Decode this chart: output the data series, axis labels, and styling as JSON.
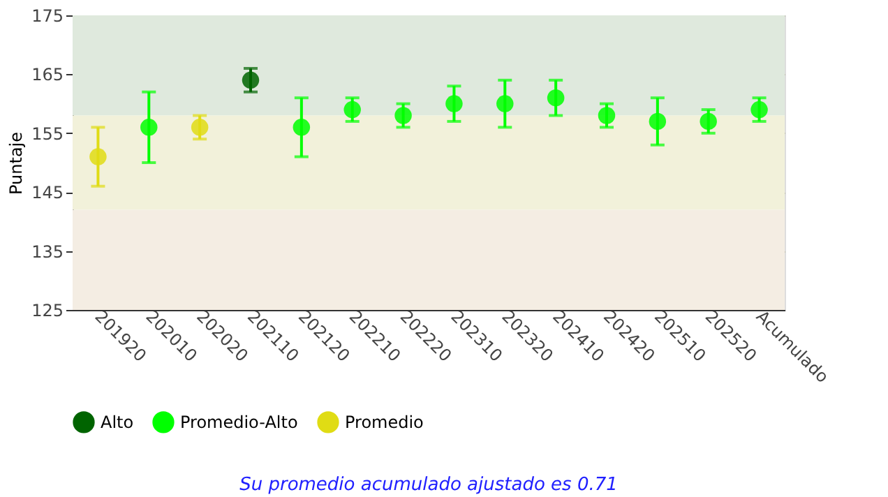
{
  "chart_data": {
    "type": "scatter",
    "ylabel": "Puntaje",
    "categories": [
      "201920",
      "202010",
      "202020",
      "202110",
      "202120",
      "202210",
      "202220",
      "202310",
      "202320",
      "202410",
      "202420",
      "202510",
      "202520",
      "Acumulado"
    ],
    "series": [
      {
        "name": "Alto",
        "color": "#006400",
        "values": [
          null,
          null,
          null,
          164,
          null,
          null,
          null,
          null,
          null,
          null,
          null,
          null,
          null,
          null
        ],
        "errors": [
          null,
          null,
          null,
          [
            162,
            166
          ],
          null,
          null,
          null,
          null,
          null,
          null,
          null,
          null,
          null,
          null
        ]
      },
      {
        "name": "Promedio-Alto",
        "color": "#00ff00",
        "values": [
          null,
          156,
          null,
          null,
          156,
          159,
          158,
          160,
          160,
          161,
          158,
          157,
          157,
          159
        ],
        "errors": [
          null,
          [
            150,
            162
          ],
          null,
          null,
          [
            151,
            161
          ],
          [
            157,
            161
          ],
          [
            156,
            160
          ],
          [
            157,
            163
          ],
          [
            156,
            164
          ],
          [
            158,
            164
          ],
          [
            156,
            160
          ],
          [
            153,
            161
          ],
          [
            155,
            159
          ],
          [
            157,
            161
          ]
        ]
      },
      {
        "name": "Promedio",
        "color": "#e0dc14",
        "values": [
          151,
          null,
          156,
          null,
          null,
          null,
          null,
          null,
          null,
          null,
          null,
          null,
          null,
          null
        ],
        "errors": [
          [
            146,
            156
          ],
          null,
          [
            154,
            158
          ],
          null,
          null,
          null,
          null,
          null,
          null,
          null,
          null,
          null,
          null,
          null
        ]
      }
    ],
    "ylim": [
      125,
      175
    ],
    "yticks": [
      125,
      135,
      145,
      155,
      165,
      175
    ],
    "bands": [
      {
        "axis": "y",
        "from": 158,
        "to": 175,
        "color": "#dfe9dd"
      },
      {
        "axis": "y",
        "from": 142,
        "to": 158,
        "color": "#f2f1da"
      },
      {
        "axis": "y",
        "from": 125,
        "to": 142,
        "color": "#f4ede3"
      }
    ],
    "grid": "y",
    "legend": "bottom",
    "marker": "circle",
    "annotations": [
      "Su promedio acumulado ajustado es 0.71"
    ]
  }
}
